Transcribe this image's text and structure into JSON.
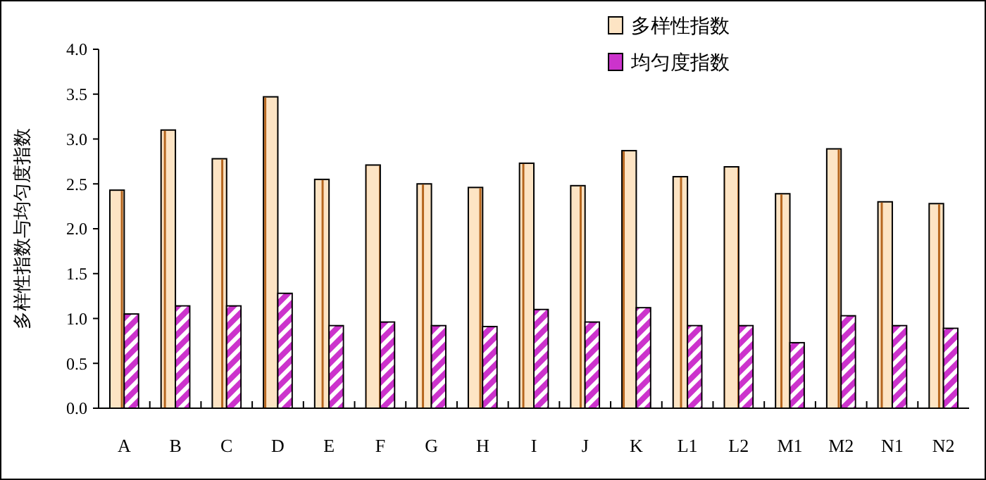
{
  "chart_data": {
    "type": "bar",
    "ylabel": "多样性指数与均匀度指数",
    "categories": [
      "A",
      "B",
      "C",
      "D",
      "E",
      "F",
      "G",
      "H",
      "I",
      "J",
      "K",
      "L1",
      "L2",
      "M1",
      "M2",
      "N1",
      "N2"
    ],
    "series": [
      {
        "name": "多样性指数",
        "color": "#fde4c4",
        "values": [
          2.43,
          3.1,
          2.78,
          3.47,
          2.55,
          2.71,
          2.5,
          2.46,
          2.73,
          2.48,
          2.87,
          2.58,
          2.69,
          2.39,
          2.89,
          2.3,
          2.28
        ]
      },
      {
        "name": "均匀度指数",
        "color": "#cc33cc",
        "values": [
          1.05,
          1.14,
          1.14,
          1.28,
          0.92,
          0.96,
          0.92,
          0.91,
          1.1,
          0.96,
          1.12,
          0.92,
          0.92,
          0.73,
          1.03,
          0.92,
          0.89
        ]
      }
    ],
    "ylim": [
      0,
      4
    ],
    "yticks": [
      {
        "value": 0,
        "label": "0.0"
      },
      {
        "value": 0.5,
        "label": "0.5"
      },
      {
        "value": 1,
        "label": "1.0"
      },
      {
        "value": 1.5,
        "label": "1.5"
      },
      {
        "value": 2,
        "label": "2.0"
      },
      {
        "value": 2.5,
        "label": "2.5"
      },
      {
        "value": 3,
        "label": "3.0"
      },
      {
        "value": 3.5,
        "label": "3.5"
      },
      {
        "value": 4,
        "label": "4.0"
      }
    ],
    "legend": "top right",
    "grid": false
  }
}
